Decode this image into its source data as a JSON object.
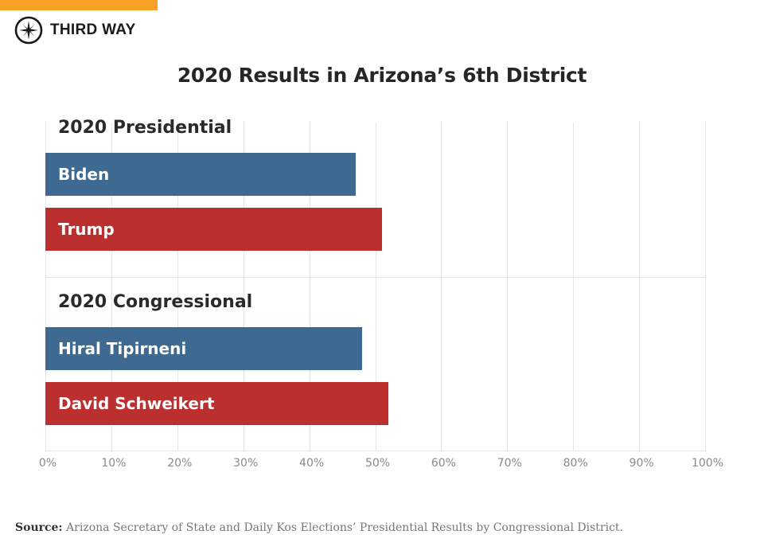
{
  "brand": {
    "name": "THIRD WAY",
    "accent_color": "#f7a125",
    "icon": "compass-star-icon"
  },
  "title": "2020 Results in Arizona’s 6th District",
  "colors": {
    "democrat": "#3e6990",
    "republican": "#bc2f2f",
    "grid": "#e6e6e6"
  },
  "chart_data": {
    "type": "bar",
    "orientation": "horizontal",
    "title": "2020 Results in Arizona’s 6th District",
    "xlabel": "",
    "ylabel": "",
    "xlim": [
      0,
      100
    ],
    "x_ticks": [
      "0%",
      "10%",
      "20%",
      "30%",
      "40%",
      "50%",
      "60%",
      "70%",
      "80%",
      "90%",
      "100%"
    ],
    "grid": true,
    "legend": null,
    "groups": [
      {
        "name": "2020 Presidential",
        "bars": [
          {
            "label": "Biden",
            "value": 47,
            "party": "democrat"
          },
          {
            "label": "Trump",
            "value": 51,
            "party": "republican"
          }
        ]
      },
      {
        "name": "2020 Congressional",
        "bars": [
          {
            "label": "Hiral Tipirneni",
            "value": 48,
            "party": "democrat"
          },
          {
            "label": "David Schweikert",
            "value": 52,
            "party": "republican"
          }
        ]
      }
    ]
  },
  "source": {
    "label": "Source:",
    "text": "Arizona Secretary of State and Daily Kos Elections’ Presidential Results by Congressional District."
  }
}
